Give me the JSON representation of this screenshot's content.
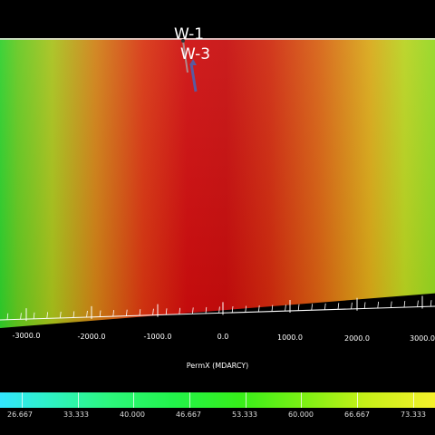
{
  "wells": [
    {
      "name": "W-1"
    },
    {
      "name": "W-3"
    }
  ],
  "axis": {
    "title": "PermX (MDARCY)",
    "ticks": [
      "-3000.0",
      "-2000.0",
      "-1000.0",
      "0.0",
      "1000.0",
      "2000.0",
      "3000.0"
    ]
  },
  "colorbar": {
    "labels": [
      "26.667",
      "33.333",
      "40.000",
      "46.667",
      "53.333",
      "60.000",
      "66.667",
      "73.333"
    ],
    "colors": [
      "#33e6ff",
      "#2cf77d",
      "#22f34a",
      "#36ef1a",
      "#7df014",
      "#c6f018",
      "#f5f12b"
    ]
  },
  "field_colors": [
    "#2ecf2a",
    "#cf7f14",
    "#cd0b0c",
    "#d65e10",
    "#92d61f"
  ]
}
